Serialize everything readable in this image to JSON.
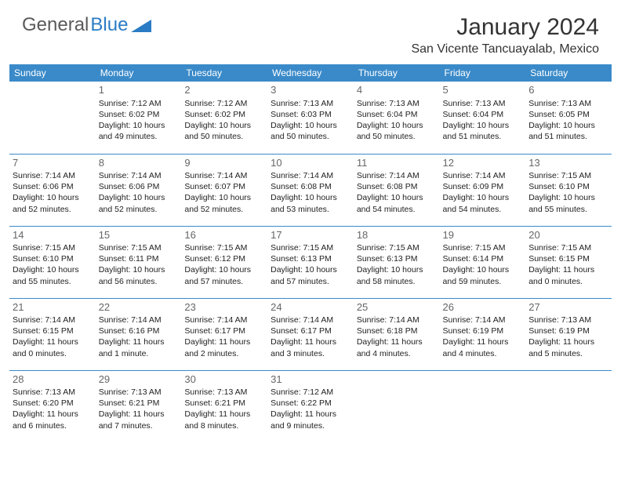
{
  "logo": {
    "text1": "General",
    "text2": "Blue"
  },
  "title": "January 2024",
  "location": "San Vicente Tancuayalab, Mexico",
  "colors": {
    "header_bg": "#3a8ac9",
    "header_fg": "#ffffff",
    "rule": "#3a8ac9",
    "text": "#222222",
    "daynum": "#666666",
    "logo_gray": "#5a5a5a",
    "logo_blue": "#2b7cc4"
  },
  "weekdays": [
    "Sunday",
    "Monday",
    "Tuesday",
    "Wednesday",
    "Thursday",
    "Friday",
    "Saturday"
  ],
  "start_offset": 1,
  "days": [
    {
      "n": 1,
      "sunrise": "7:12 AM",
      "sunset": "6:02 PM",
      "daylight": "10 hours and 49 minutes."
    },
    {
      "n": 2,
      "sunrise": "7:12 AM",
      "sunset": "6:02 PM",
      "daylight": "10 hours and 50 minutes."
    },
    {
      "n": 3,
      "sunrise": "7:13 AM",
      "sunset": "6:03 PM",
      "daylight": "10 hours and 50 minutes."
    },
    {
      "n": 4,
      "sunrise": "7:13 AM",
      "sunset": "6:04 PM",
      "daylight": "10 hours and 50 minutes."
    },
    {
      "n": 5,
      "sunrise": "7:13 AM",
      "sunset": "6:04 PM",
      "daylight": "10 hours and 51 minutes."
    },
    {
      "n": 6,
      "sunrise": "7:13 AM",
      "sunset": "6:05 PM",
      "daylight": "10 hours and 51 minutes."
    },
    {
      "n": 7,
      "sunrise": "7:14 AM",
      "sunset": "6:06 PM",
      "daylight": "10 hours and 52 minutes."
    },
    {
      "n": 8,
      "sunrise": "7:14 AM",
      "sunset": "6:06 PM",
      "daylight": "10 hours and 52 minutes."
    },
    {
      "n": 9,
      "sunrise": "7:14 AM",
      "sunset": "6:07 PM",
      "daylight": "10 hours and 52 minutes."
    },
    {
      "n": 10,
      "sunrise": "7:14 AM",
      "sunset": "6:08 PM",
      "daylight": "10 hours and 53 minutes."
    },
    {
      "n": 11,
      "sunrise": "7:14 AM",
      "sunset": "6:08 PM",
      "daylight": "10 hours and 54 minutes."
    },
    {
      "n": 12,
      "sunrise": "7:14 AM",
      "sunset": "6:09 PM",
      "daylight": "10 hours and 54 minutes."
    },
    {
      "n": 13,
      "sunrise": "7:15 AM",
      "sunset": "6:10 PM",
      "daylight": "10 hours and 55 minutes."
    },
    {
      "n": 14,
      "sunrise": "7:15 AM",
      "sunset": "6:10 PM",
      "daylight": "10 hours and 55 minutes."
    },
    {
      "n": 15,
      "sunrise": "7:15 AM",
      "sunset": "6:11 PM",
      "daylight": "10 hours and 56 minutes."
    },
    {
      "n": 16,
      "sunrise": "7:15 AM",
      "sunset": "6:12 PM",
      "daylight": "10 hours and 57 minutes."
    },
    {
      "n": 17,
      "sunrise": "7:15 AM",
      "sunset": "6:13 PM",
      "daylight": "10 hours and 57 minutes."
    },
    {
      "n": 18,
      "sunrise": "7:15 AM",
      "sunset": "6:13 PM",
      "daylight": "10 hours and 58 minutes."
    },
    {
      "n": 19,
      "sunrise": "7:15 AM",
      "sunset": "6:14 PM",
      "daylight": "10 hours and 59 minutes."
    },
    {
      "n": 20,
      "sunrise": "7:15 AM",
      "sunset": "6:15 PM",
      "daylight": "11 hours and 0 minutes."
    },
    {
      "n": 21,
      "sunrise": "7:14 AM",
      "sunset": "6:15 PM",
      "daylight": "11 hours and 0 minutes."
    },
    {
      "n": 22,
      "sunrise": "7:14 AM",
      "sunset": "6:16 PM",
      "daylight": "11 hours and 1 minute."
    },
    {
      "n": 23,
      "sunrise": "7:14 AM",
      "sunset": "6:17 PM",
      "daylight": "11 hours and 2 minutes."
    },
    {
      "n": 24,
      "sunrise": "7:14 AM",
      "sunset": "6:17 PM",
      "daylight": "11 hours and 3 minutes."
    },
    {
      "n": 25,
      "sunrise": "7:14 AM",
      "sunset": "6:18 PM",
      "daylight": "11 hours and 4 minutes."
    },
    {
      "n": 26,
      "sunrise": "7:14 AM",
      "sunset": "6:19 PM",
      "daylight": "11 hours and 4 minutes."
    },
    {
      "n": 27,
      "sunrise": "7:13 AM",
      "sunset": "6:19 PM",
      "daylight": "11 hours and 5 minutes."
    },
    {
      "n": 28,
      "sunrise": "7:13 AM",
      "sunset": "6:20 PM",
      "daylight": "11 hours and 6 minutes."
    },
    {
      "n": 29,
      "sunrise": "7:13 AM",
      "sunset": "6:21 PM",
      "daylight": "11 hours and 7 minutes."
    },
    {
      "n": 30,
      "sunrise": "7:13 AM",
      "sunset": "6:21 PM",
      "daylight": "11 hours and 8 minutes."
    },
    {
      "n": 31,
      "sunrise": "7:12 AM",
      "sunset": "6:22 PM",
      "daylight": "11 hours and 9 minutes."
    }
  ],
  "labels": {
    "sunrise": "Sunrise:",
    "sunset": "Sunset:",
    "daylight": "Daylight:"
  }
}
